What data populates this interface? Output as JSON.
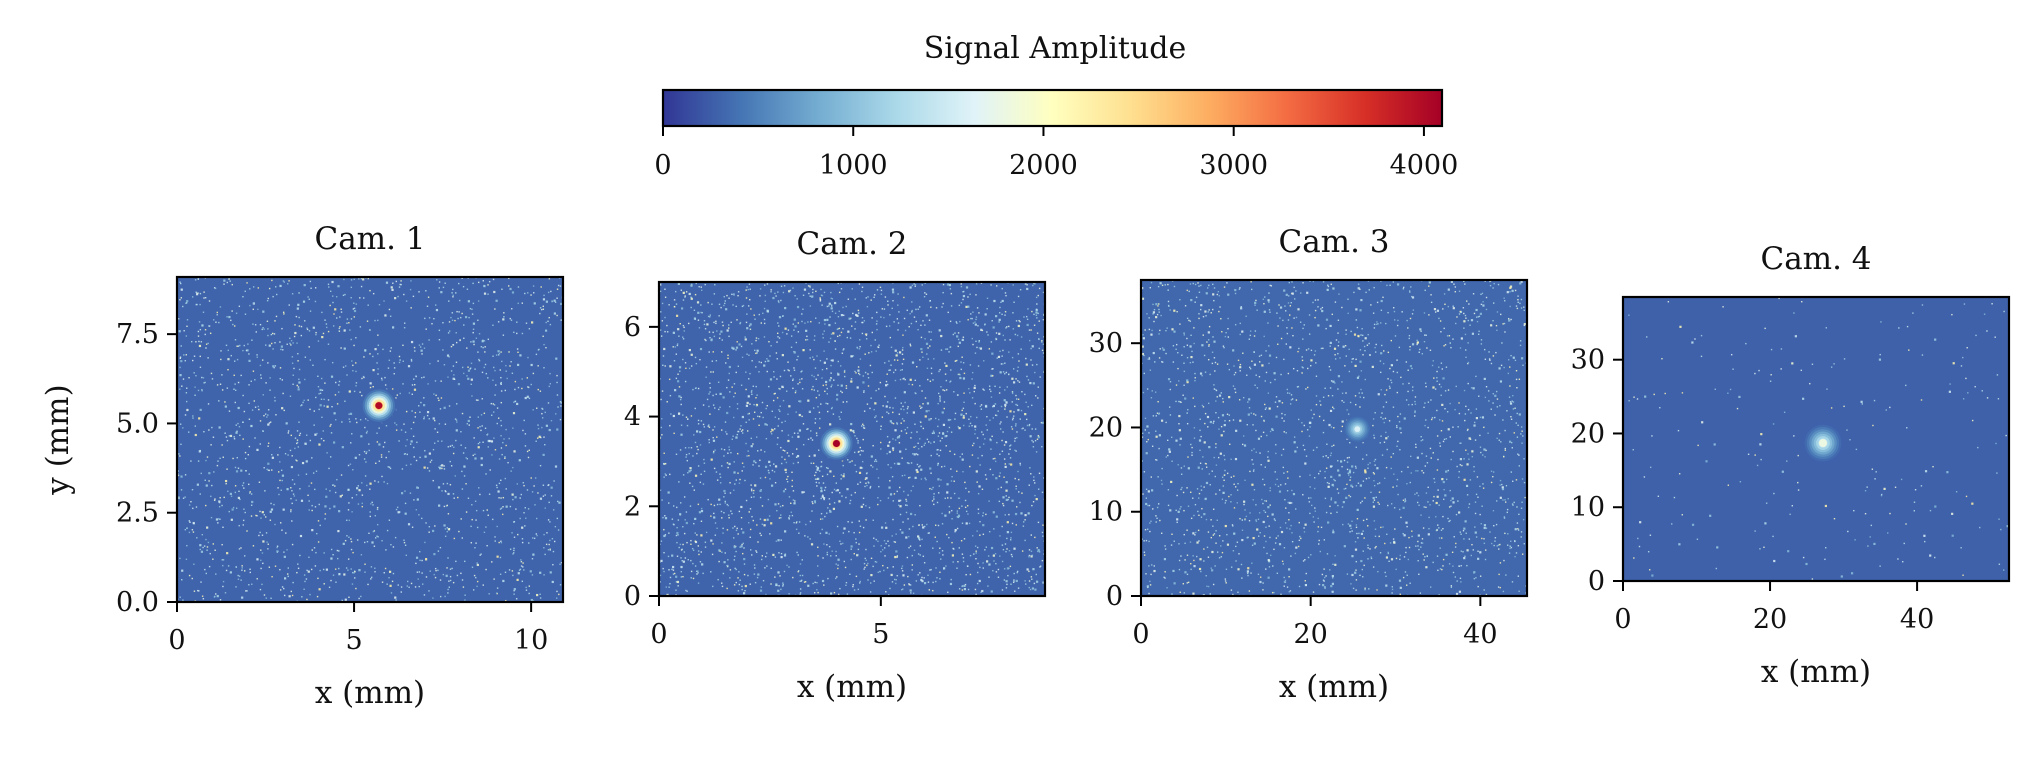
{
  "chart_data": {
    "type": "heatmap",
    "colorbar": {
      "label": "Signal Amplitude",
      "range": [
        0,
        4095
      ],
      "ticks": [
        0,
        1000,
        2000,
        3000,
        4000
      ],
      "colormap": "RdYlBu_r",
      "orientation": "horizontal",
      "placement": "top"
    },
    "panels": [
      {
        "title": "Cam. 1",
        "xlabel": "x (mm)",
        "ylabel": "y (mm)",
        "xlim": [
          0,
          10.9
        ],
        "ylim": [
          0,
          9.1
        ],
        "xticks": [
          0,
          5,
          10
        ],
        "yticks": [
          0,
          2.5,
          5,
          7.5
        ],
        "xtick_labels": [
          "0",
          "5",
          "10"
        ],
        "ytick_labels": [
          "0.0",
          "2.5",
          "5.0",
          "7.5"
        ],
        "spot": {
          "x": 5.7,
          "y": 5.5,
          "peak": 4000
        },
        "background_level": 300,
        "noise_density": 0.9
      },
      {
        "title": "Cam. 2",
        "xlabel": "x (mm)",
        "ylabel": "",
        "xlim": [
          0,
          8.7
        ],
        "ylim": [
          0,
          7.0
        ],
        "xticks": [
          0,
          5
        ],
        "yticks": [
          0,
          2,
          4,
          6
        ],
        "xtick_labels": [
          "0",
          "5"
        ],
        "ytick_labels": [
          "0",
          "2",
          "4",
          "6"
        ],
        "spot": {
          "x": 4.0,
          "y": 3.4,
          "peak": 4095
        },
        "background_level": 300,
        "noise_density": 1.3
      },
      {
        "title": "Cam. 3",
        "xlabel": "x (mm)",
        "ylabel": "",
        "xlim": [
          0,
          45.5
        ],
        "ylim": [
          0,
          37.5
        ],
        "xticks": [
          0,
          20,
          40
        ],
        "yticks": [
          0,
          10,
          20,
          30
        ],
        "xtick_labels": [
          "0",
          "20",
          "40"
        ],
        "ytick_labels": [
          "0",
          "10",
          "20",
          "30"
        ],
        "spot": {
          "x": 25.5,
          "y": 19.8,
          "peak": 1600
        },
        "background_level": 320,
        "noise_density": 1.0
      },
      {
        "title": "Cam. 4",
        "xlabel": "x (mm)",
        "ylabel": "",
        "xlim": [
          0,
          52.5
        ],
        "ylim": [
          0,
          38.5
        ],
        "xticks": [
          0,
          20,
          40
        ],
        "yticks": [
          0,
          10,
          20,
          30
        ],
        "xtick_labels": [
          "0",
          "20",
          "40"
        ],
        "ytick_labels": [
          "0",
          "10",
          "20",
          "30"
        ],
        "spot": {
          "x": 27.2,
          "y": 18.7,
          "peak": 1800
        },
        "background_level": 280,
        "noise_density": 0.12
      }
    ]
  }
}
